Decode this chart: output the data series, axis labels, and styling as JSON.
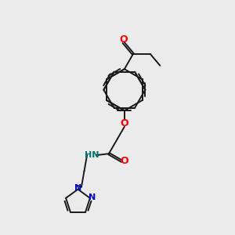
{
  "bg_color": "#ebebeb",
  "bond_color": "#1a1a1a",
  "o_color": "#ff0000",
  "n_color": "#0000cc",
  "nh_color": "#007070",
  "lw": 1.4,
  "fs": 8.0,
  "figsize": [
    3.0,
    3.0
  ],
  "dpi": 100,
  "xlim": [
    0,
    10
  ],
  "ylim": [
    0,
    10
  ]
}
